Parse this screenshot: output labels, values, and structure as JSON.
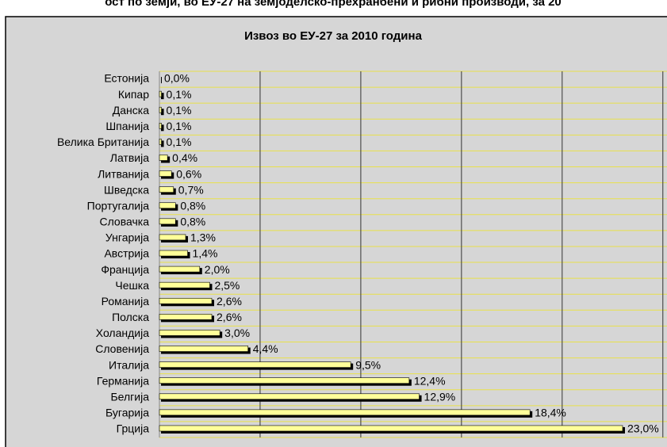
{
  "header": {
    "text": "ост по земји, во ЕУ-27 на земјоделско-прехранбени и рибни производи, за 20"
  },
  "chart_data": {
    "type": "bar",
    "orientation": "horizontal",
    "title": "Извоз во ЕУ-27 за 2010 година",
    "categories": [
      "Естонија",
      "Кипар",
      "Данска",
      "Шпанија",
      "Велика Британија",
      "Латвија",
      "Литванија",
      "Шведска",
      "Португалија",
      "Словачка",
      "Унгарија",
      "Австрија",
      "Франција",
      "Чешка",
      "Романија",
      "Полска",
      "Холандија",
      "Словенија",
      "Италија",
      "Германија",
      "Белгија",
      "Бугарија",
      "Грција"
    ],
    "values": [
      0.0,
      0.1,
      0.1,
      0.1,
      0.1,
      0.4,
      0.6,
      0.7,
      0.8,
      0.8,
      1.3,
      1.4,
      2.0,
      2.5,
      2.6,
      2.6,
      3.0,
      4.4,
      9.5,
      12.4,
      12.9,
      18.4,
      23.0
    ],
    "value_labels": [
      "0,0%",
      "0,1%",
      "0,1%",
      "0,1%",
      "0,1%",
      "0,4%",
      "0,6%",
      "0,7%",
      "0,8%",
      "0,8%",
      "1,3%",
      "1,4%",
      "2,0%",
      "2,5%",
      "2,6%",
      "2,6%",
      "3,0%",
      "4,4%",
      "9,5%",
      "12,4%",
      "12,9%",
      "18,4%",
      "23,0%"
    ],
    "color": "#ffff99",
    "xlim": [
      0,
      25
    ],
    "xticks": [
      0,
      5,
      10,
      15,
      20,
      25
    ],
    "grid": true
  }
}
